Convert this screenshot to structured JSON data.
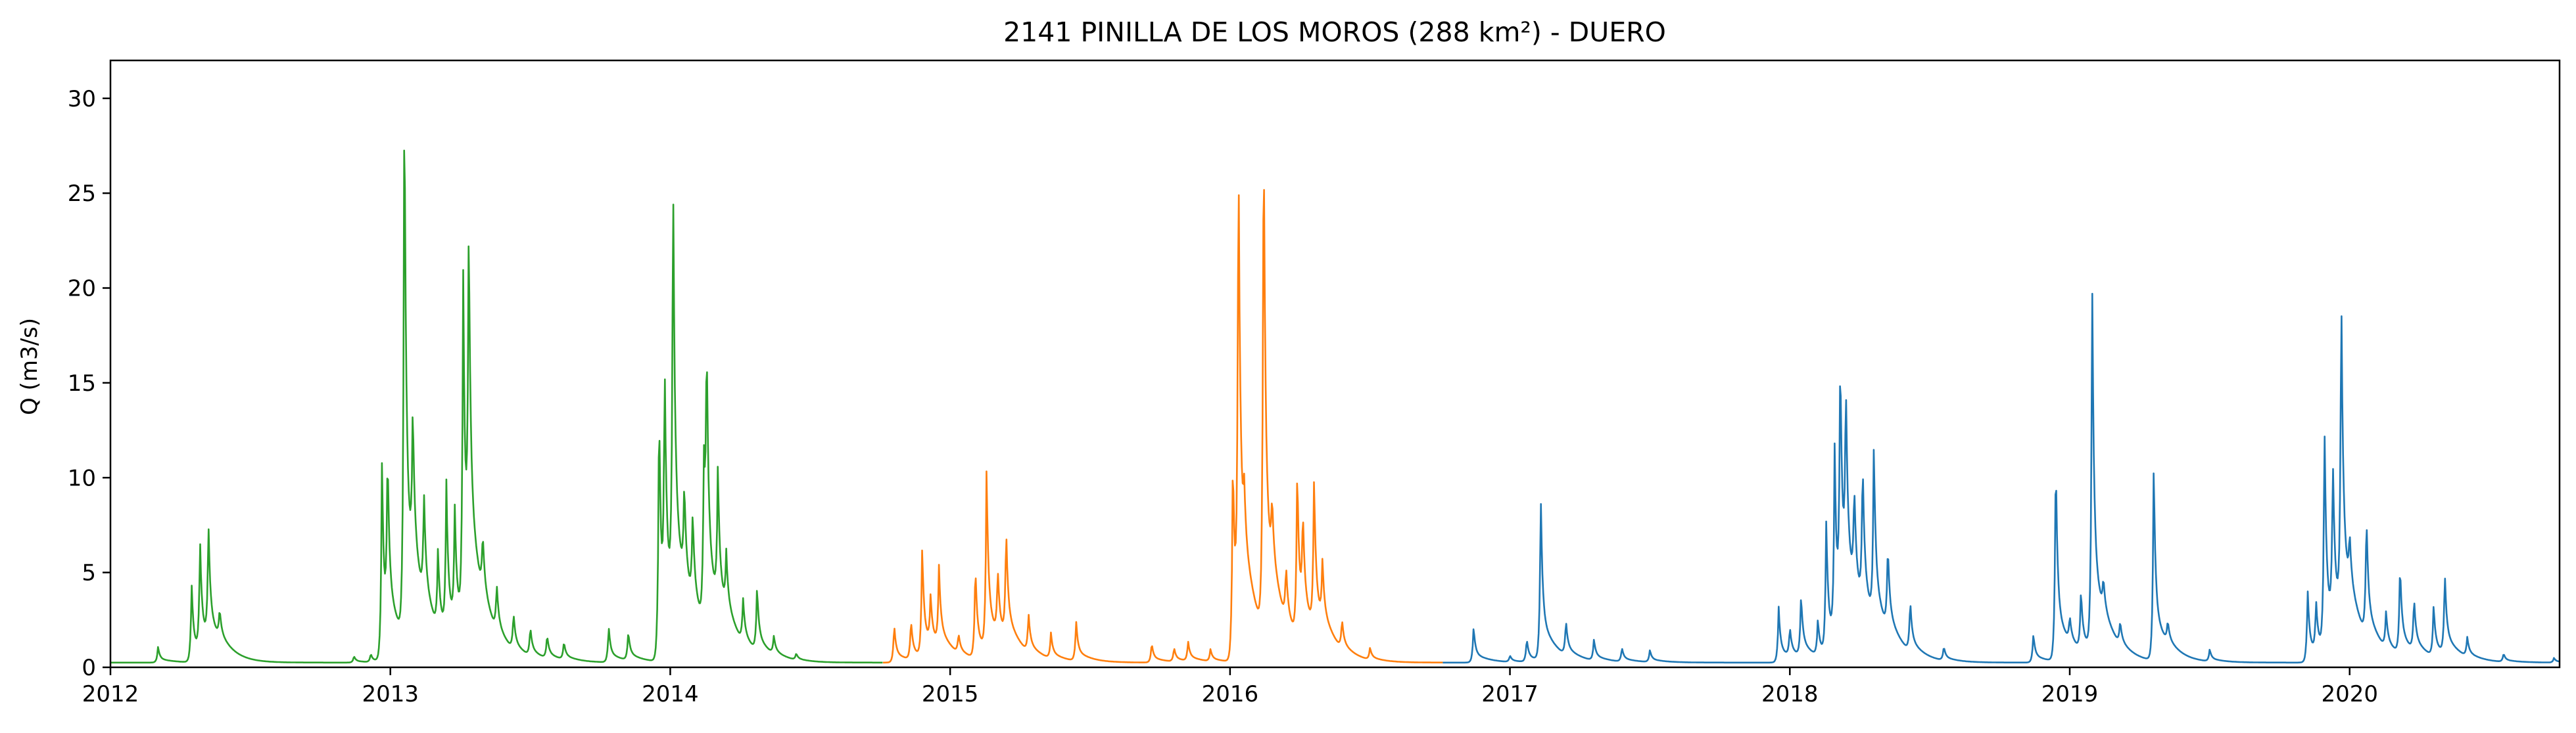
{
  "chart_data": {
    "type": "line",
    "title": "2141 PINILLA DE LOS MOROS (288 km²) - DUERO",
    "xlabel": "",
    "ylabel": "Q (m3/s)",
    "xlim": [
      2012.0,
      2020.75
    ],
    "ylim": [
      0,
      32
    ],
    "x_ticks": [
      "2012",
      "2013",
      "2014",
      "2015",
      "2016",
      "2017",
      "2018",
      "2019",
      "2020"
    ],
    "y_ticks": [
      "0",
      "5",
      "10",
      "15",
      "20",
      "25",
      "30"
    ],
    "grid": false,
    "legend": "none",
    "baseline": 0.25,
    "series": [
      {
        "color": "#2ca02c",
        "x_range": [
          2012.0,
          2014.76
        ],
        "peaks": [
          [
            2012.17,
            1.1
          ],
          [
            2012.29,
            4.5
          ],
          [
            2012.32,
            6.2
          ],
          [
            2012.35,
            6.5
          ],
          [
            2012.39,
            1.8
          ],
          [
            2012.87,
            0.6
          ],
          [
            2012.93,
            0.7
          ],
          [
            2012.97,
            11.0
          ],
          [
            2012.99,
            9.5
          ],
          [
            2013.05,
            30.6
          ],
          [
            2013.08,
            8.6
          ],
          [
            2013.12,
            6.0
          ],
          [
            2013.17,
            4.5
          ],
          [
            2013.2,
            8.2
          ],
          [
            2013.23,
            6.5
          ],
          [
            2013.26,
            19.3
          ],
          [
            2013.28,
            19.0
          ],
          [
            2013.33,
            3.5
          ],
          [
            2013.38,
            2.8
          ],
          [
            2013.44,
            2.2
          ],
          [
            2013.5,
            1.8
          ],
          [
            2013.56,
            1.5
          ],
          [
            2013.62,
            1.2
          ],
          [
            2013.78,
            2.2
          ],
          [
            2013.85,
            1.8
          ],
          [
            2013.96,
            14.3
          ],
          [
            2013.98,
            13.5
          ],
          [
            2014.01,
            23.5
          ],
          [
            2014.05,
            5.5
          ],
          [
            2014.08,
            5.2
          ],
          [
            2014.12,
            9.0
          ],
          [
            2014.13,
            13.2
          ],
          [
            2014.17,
            7.5
          ],
          [
            2014.2,
            3.3
          ],
          [
            2014.26,
            2.6
          ],
          [
            2014.31,
            3.7
          ],
          [
            2014.37,
            1.2
          ],
          [
            2014.45,
            0.6
          ]
        ]
      },
      {
        "color": "#ff7f0e",
        "x_range": [
          2014.76,
          2016.76
        ],
        "peaks": [
          [
            2014.8,
            2.3
          ],
          [
            2014.86,
            2.4
          ],
          [
            2014.9,
            6.2
          ],
          [
            2014.93,
            2.8
          ],
          [
            2014.96,
            4.4
          ],
          [
            2015.03,
            1.3
          ],
          [
            2015.09,
            5.3
          ],
          [
            2015.13,
            9.9
          ],
          [
            2015.17,
            3.8
          ],
          [
            2015.2,
            6.1
          ],
          [
            2015.28,
            2.3
          ],
          [
            2015.36,
            1.6
          ],
          [
            2015.45,
            2.4
          ],
          [
            2015.72,
            1.3
          ],
          [
            2015.8,
            1.0
          ],
          [
            2015.85,
            1.3
          ],
          [
            2015.93,
            0.9
          ],
          [
            2016.01,
            11.4
          ],
          [
            2016.03,
            26.2
          ],
          [
            2016.05,
            3.5
          ],
          [
            2016.12,
            28.6
          ],
          [
            2016.15,
            3.8
          ],
          [
            2016.2,
            3.2
          ],
          [
            2016.24,
            9.4
          ],
          [
            2016.26,
            5.7
          ],
          [
            2016.3,
            8.4
          ],
          [
            2016.33,
            3.5
          ],
          [
            2016.4,
            1.8
          ],
          [
            2016.5,
            0.9
          ]
        ]
      },
      {
        "color": "#1f77b4",
        "x_range": [
          2016.76,
          2020.75
        ],
        "peaks": [
          [
            2016.87,
            2.2
          ],
          [
            2017.0,
            0.6
          ],
          [
            2017.06,
            1.5
          ],
          [
            2017.11,
            9.2
          ],
          [
            2017.2,
            2.1
          ],
          [
            2017.3,
            1.4
          ],
          [
            2017.4,
            1.0
          ],
          [
            2017.5,
            0.9
          ],
          [
            2017.96,
            3.2
          ],
          [
            2018.0,
            1.8
          ],
          [
            2018.04,
            3.6
          ],
          [
            2018.1,
            2.2
          ],
          [
            2018.13,
            7.4
          ],
          [
            2018.16,
            10.3
          ],
          [
            2018.18,
            14.2
          ],
          [
            2018.2,
            10.7
          ],
          [
            2018.23,
            5.8
          ],
          [
            2018.26,
            8.1
          ],
          [
            2018.3,
            9.7
          ],
          [
            2018.35,
            4.8
          ],
          [
            2018.43,
            3.0
          ],
          [
            2018.55,
            1.0
          ],
          [
            2018.87,
            1.8
          ],
          [
            2018.95,
            11.4
          ],
          [
            2019.0,
            1.6
          ],
          [
            2019.04,
            3.5
          ],
          [
            2019.08,
            20.3
          ],
          [
            2019.12,
            2.0
          ],
          [
            2019.18,
            1.5
          ],
          [
            2019.3,
            10.8
          ],
          [
            2019.35,
            1.4
          ],
          [
            2019.5,
            0.9
          ],
          [
            2019.85,
            4.2
          ],
          [
            2019.88,
            3.0
          ],
          [
            2019.91,
            12.4
          ],
          [
            2019.94,
            9.0
          ],
          [
            2019.97,
            17.9
          ],
          [
            2020.0,
            3.1
          ],
          [
            2020.06,
            6.8
          ],
          [
            2020.13,
            2.2
          ],
          [
            2020.18,
            5.1
          ],
          [
            2020.23,
            3.1
          ],
          [
            2020.3,
            3.0
          ],
          [
            2020.34,
            4.6
          ],
          [
            2020.42,
            1.3
          ],
          [
            2020.55,
            0.7
          ],
          [
            2020.73,
            0.5
          ]
        ]
      }
    ]
  }
}
